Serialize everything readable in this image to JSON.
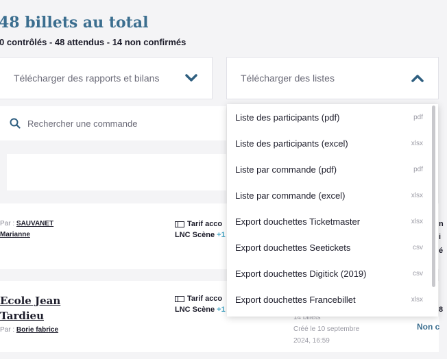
{
  "header": {
    "title": "48 billets au total",
    "subtitle": "0 contrôlés  -  48 attendus  -  14 non confirmés"
  },
  "downloads": {
    "reports_label": "Télécharger des rapports et bilans",
    "lists_label": "Télécharger des listes"
  },
  "search": {
    "placeholder": "Rechercher une commande"
  },
  "dropdown": {
    "items": [
      {
        "label": "Liste des participants (pdf)",
        "ext": "pdf"
      },
      {
        "label": "Liste des participants (excel)",
        "ext": "xlsx"
      },
      {
        "label": "Liste par commande (pdf)",
        "ext": "pdf"
      },
      {
        "label": "Liste par commande (excel)",
        "ext": "xlsx"
      },
      {
        "label": "Export douchettes Ticketmaster",
        "ext": "xlsx"
      },
      {
        "label": "Export douchettes Seetickets",
        "ext": "csv"
      },
      {
        "label": "Export douchettes Digitick (2019)",
        "ext": "csv"
      },
      {
        "label": "Export douchettes Francebillet",
        "ext": "xlsx"
      }
    ]
  },
  "orders": [
    {
      "par_prefix": "Par : ",
      "par_name_line1": "SAUVANET",
      "par_name_line2": "Marianne",
      "tarif": "Tarif acco",
      "scene": "LNC Scène",
      "scene_extra": "+1",
      "right_edge_1": "n",
      "right_edge_2": "i",
      "right_edge_3": "é"
    },
    {
      "name_line1": "Ecole Jean",
      "name_line2": "Tardieu",
      "par_prefix": "Par : ",
      "par_name": "Borie fabrice",
      "tarif": "Tarif acco",
      "scene": "LNC Scène",
      "scene_extra": "+1",
      "tickets": "14 billets",
      "created_line1": "Créé le 10 septembre",
      "created_line2": "2024, 16:59",
      "status": "Non c",
      "right_edge_1": "8"
    }
  ],
  "colors": {
    "accent": "#3b6e8f",
    "link_blue": "#4aa7c6"
  }
}
